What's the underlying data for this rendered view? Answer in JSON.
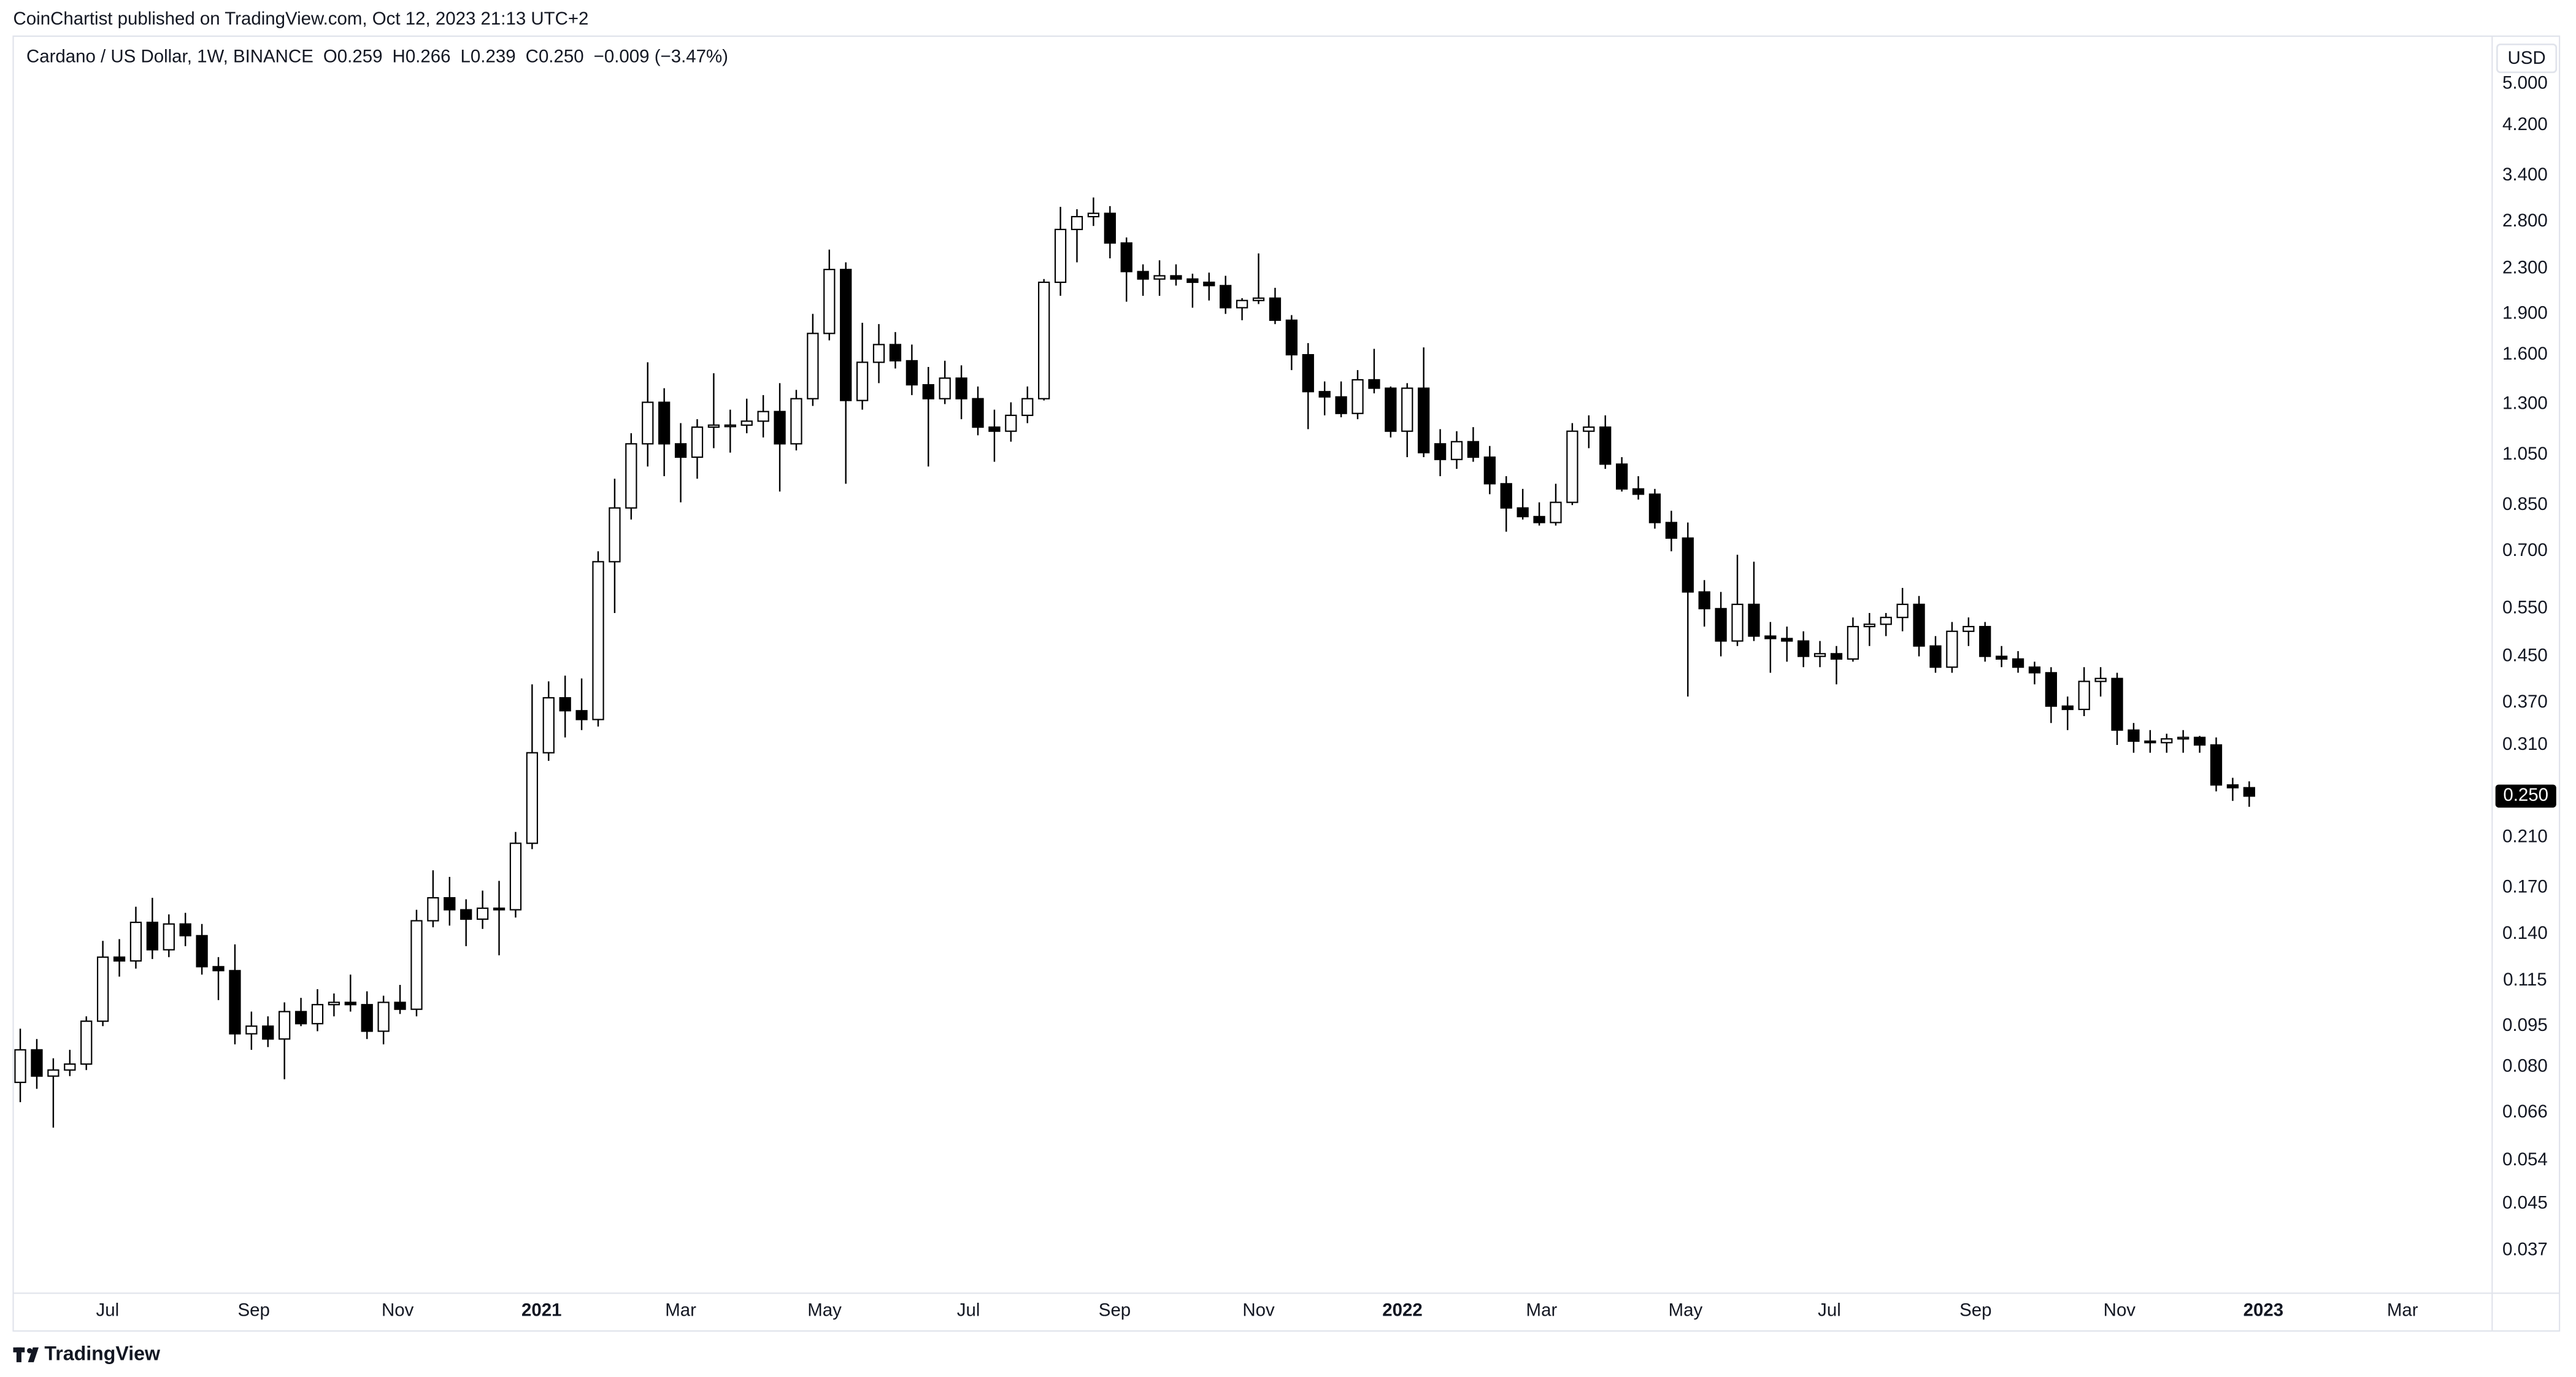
{
  "published": "CoinChartist published on TradingView.com, Oct 12, 2023 21:13 UTC+2",
  "brand": "TradingView",
  "chart_data": {
    "type": "candlestick",
    "title": "Cardano / US Dollar, 1W, BINANCE",
    "ohlc_labels": [
      "O0.259",
      "H0.266",
      "L0.239",
      "C0.250"
    ],
    "change_label": "−0.009 (−3.47%)",
    "currency": "USD",
    "log_scale": true,
    "grid": false,
    "up_color": "#ffffff",
    "down_color": "#000000",
    "border_color": "#000000",
    "last_price": {
      "value": 0.25,
      "label": "0.250"
    },
    "xlim": [
      "2020-05-22",
      "2023-04-08"
    ],
    "xticks": [
      {
        "value": "2020-07-01",
        "label": "Jul"
      },
      {
        "value": "2020-09-01",
        "label": "Sep"
      },
      {
        "value": "2020-11-01",
        "label": "Nov"
      },
      {
        "value": "2021-01-01",
        "label": "2021"
      },
      {
        "value": "2021-03-01",
        "label": "Mar"
      },
      {
        "value": "2021-05-01",
        "label": "May"
      },
      {
        "value": "2021-07-01",
        "label": "Jul"
      },
      {
        "value": "2021-09-01",
        "label": "Sep"
      },
      {
        "value": "2021-11-01",
        "label": "Nov"
      },
      {
        "value": "2022-01-01",
        "label": "2022"
      },
      {
        "value": "2022-03-01",
        "label": "Mar"
      },
      {
        "value": "2022-05-01",
        "label": "May"
      },
      {
        "value": "2022-07-01",
        "label": "Jul"
      },
      {
        "value": "2022-09-01",
        "label": "Sep"
      },
      {
        "value": "2022-11-01",
        "label": "Nov"
      },
      {
        "value": "2023-01-01",
        "label": "2023"
      },
      {
        "value": "2023-03-01",
        "label": "Mar"
      }
    ],
    "ylim": [
      0.0309,
      6.11
    ],
    "yticks": [
      {
        "value": 5,
        "label": "5.000"
      },
      {
        "value": 4.2,
        "label": "4.200"
      },
      {
        "value": 3.4,
        "label": "3.400"
      },
      {
        "value": 2.8,
        "label": "2.800"
      },
      {
        "value": 2.3,
        "label": "2.300"
      },
      {
        "value": 1.9,
        "label": "1.900"
      },
      {
        "value": 1.6,
        "label": "1.600"
      },
      {
        "value": 1.3,
        "label": "1.300"
      },
      {
        "value": 1.05,
        "label": "1.050"
      },
      {
        "value": 0.85,
        "label": "0.850"
      },
      {
        "value": 0.7,
        "label": "0.700"
      },
      {
        "value": 0.55,
        "label": "0.550"
      },
      {
        "value": 0.45,
        "label": "0.450"
      },
      {
        "value": 0.37,
        "label": "0.370"
      },
      {
        "value": 0.31,
        "label": "0.310"
      },
      {
        "value": 0.25,
        "label": "0.250"
      },
      {
        "value": 0.21,
        "label": "0.210"
      },
      {
        "value": 0.17,
        "label": "0.170"
      },
      {
        "value": 0.14,
        "label": "0.140"
      },
      {
        "value": 0.115,
        "label": "0.115"
      },
      {
        "value": 0.095,
        "label": "0.095"
      },
      {
        "value": 0.08,
        "label": "0.080"
      },
      {
        "value": 0.066,
        "label": "0.066"
      },
      {
        "value": 0.054,
        "label": "0.054"
      },
      {
        "value": 0.045,
        "label": "0.045"
      },
      {
        "value": 0.037,
        "label": "0.037"
      }
    ],
    "x": [
      "2020-05-25",
      "2020-06-01",
      "2020-06-08",
      "2020-06-15",
      "2020-06-22",
      "2020-06-29",
      "2020-07-06",
      "2020-07-13",
      "2020-07-20",
      "2020-07-27",
      "2020-08-03",
      "2020-08-10",
      "2020-08-17",
      "2020-08-24",
      "2020-08-31",
      "2020-09-07",
      "2020-09-14",
      "2020-09-21",
      "2020-09-28",
      "2020-10-05",
      "2020-10-12",
      "2020-10-19",
      "2020-10-26",
      "2020-11-02",
      "2020-11-09",
      "2020-11-16",
      "2020-11-23",
      "2020-11-30",
      "2020-12-07",
      "2020-12-14",
      "2020-12-21",
      "2020-12-28",
      "2021-01-04",
      "2021-01-11",
      "2021-01-18",
      "2021-01-25",
      "2021-02-01",
      "2021-02-08",
      "2021-02-15",
      "2021-02-22",
      "2021-03-01",
      "2021-03-08",
      "2021-03-15",
      "2021-03-22",
      "2021-03-29",
      "2021-04-05",
      "2021-04-12",
      "2021-04-19",
      "2021-04-26",
      "2021-05-03",
      "2021-05-10",
      "2021-05-17",
      "2021-05-24",
      "2021-05-31",
      "2021-06-07",
      "2021-06-14",
      "2021-06-21",
      "2021-06-28",
      "2021-07-05",
      "2021-07-12",
      "2021-07-19",
      "2021-07-26",
      "2021-08-02",
      "2021-08-09",
      "2021-08-16",
      "2021-08-23",
      "2021-08-30",
      "2021-09-06",
      "2021-09-13",
      "2021-09-20",
      "2021-09-27",
      "2021-10-04",
      "2021-10-11",
      "2021-10-18",
      "2021-10-25",
      "2021-11-01",
      "2021-11-08",
      "2021-11-15",
      "2021-11-22",
      "2021-11-29",
      "2021-12-06",
      "2021-12-13",
      "2021-12-20",
      "2021-12-27",
      "2022-01-03",
      "2022-01-10",
      "2022-01-17",
      "2022-01-24",
      "2022-01-31",
      "2022-02-07",
      "2022-02-14",
      "2022-02-21",
      "2022-02-28",
      "2022-03-07",
      "2022-03-14",
      "2022-03-21",
      "2022-03-28",
      "2022-04-04",
      "2022-04-11",
      "2022-04-18",
      "2022-04-25",
      "2022-05-02",
      "2022-05-09",
      "2022-05-16",
      "2022-05-23",
      "2022-05-30",
      "2022-06-06",
      "2022-06-13",
      "2022-06-20",
      "2022-06-27",
      "2022-07-04",
      "2022-07-11",
      "2022-07-18",
      "2022-07-25",
      "2022-08-01",
      "2022-08-08",
      "2022-08-15",
      "2022-08-22",
      "2022-08-29",
      "2022-09-05",
      "2022-09-12",
      "2022-09-19",
      "2022-09-26",
      "2022-10-03",
      "2022-10-10",
      "2022-10-17",
      "2022-10-24",
      "2022-10-31",
      "2022-11-07",
      "2022-11-14",
      "2022-11-21",
      "2022-11-28",
      "2022-12-05",
      "2022-12-12",
      "2022-12-19",
      "2022-12-26"
    ],
    "open": [
      0.075,
      0.086,
      0.077,
      0.079,
      0.081,
      0.097,
      0.127,
      0.125,
      0.147,
      0.131,
      0.146,
      0.139,
      0.122,
      0.12,
      0.092,
      0.095,
      0.09,
      0.101,
      0.096,
      0.104,
      0.105,
      0.104,
      0.093,
      0.105,
      0.102,
      0.148,
      0.163,
      0.155,
      0.149,
      0.156,
      0.155,
      0.205,
      0.3,
      0.378,
      0.358,
      0.345,
      0.67,
      0.84,
      1.1,
      1.31,
      1.1,
      1.04,
      1.18,
      1.19,
      1.19,
      1.21,
      1.26,
      1.1,
      1.33,
      1.75,
      2.29,
      1.32,
      1.55,
      1.67,
      1.56,
      1.41,
      1.33,
      1.45,
      1.33,
      1.18,
      1.16,
      1.24,
      1.33,
      2.17,
      2.71,
      2.86,
      2.9,
      2.56,
      2.27,
      2.2,
      2.23,
      2.2,
      2.17,
      2.14,
      1.95,
      2.01,
      2.03,
      1.85,
      1.6,
      1.37,
      1.34,
      1.25,
      1.44,
      1.39,
      1.16,
      1.39,
      1.1,
      1.03,
      1.11,
      1.04,
      0.93,
      0.84,
      0.81,
      0.79,
      0.86,
      1.16,
      1.18,
      1.01,
      0.91,
      0.89,
      0.79,
      0.74,
      0.59,
      0.55,
      0.48,
      0.56,
      0.49,
      0.485,
      0.48,
      0.45,
      0.455,
      0.445,
      0.51,
      0.515,
      0.53,
      0.56,
      0.47,
      0.43,
      0.5,
      0.51,
      0.45,
      0.445,
      0.43,
      0.42,
      0.365,
      0.36,
      0.405,
      0.41,
      0.33,
      0.315,
      0.313,
      0.318,
      0.32,
      0.31,
      0.262,
      0.259
    ],
    "high": [
      0.094,
      0.09,
      0.083,
      0.086,
      0.099,
      0.136,
      0.137,
      0.157,
      0.163,
      0.152,
      0.153,
      0.146,
      0.127,
      0.134,
      0.101,
      0.099,
      0.105,
      0.107,
      0.111,
      0.109,
      0.118,
      0.11,
      0.108,
      0.113,
      0.155,
      0.183,
      0.178,
      0.162,
      0.168,
      0.175,
      0.215,
      0.4,
      0.405,
      0.415,
      0.41,
      0.7,
      0.95,
      1.15,
      1.55,
      1.39,
      1.2,
      1.22,
      1.48,
      1.27,
      1.33,
      1.35,
      1.42,
      1.38,
      1.9,
      2.49,
      2.36,
      1.83,
      1.82,
      1.76,
      1.67,
      1.52,
      1.56,
      1.53,
      1.4,
      1.27,
      1.31,
      1.4,
      2.2,
      2.98,
      2.95,
      3.1,
      2.99,
      2.62,
      2.34,
      2.38,
      2.34,
      2.25,
      2.26,
      2.23,
      2.03,
      2.45,
      2.12,
      1.89,
      1.68,
      1.43,
      1.43,
      1.5,
      1.64,
      1.4,
      1.42,
      1.65,
      1.17,
      1.16,
      1.18,
      1.09,
      0.96,
      0.91,
      0.86,
      0.93,
      1.2,
      1.24,
      1.24,
      1.04,
      0.96,
      0.91,
      0.83,
      0.79,
      0.62,
      0.59,
      0.69,
      0.67,
      0.52,
      0.51,
      0.5,
      0.48,
      0.47,
      0.53,
      0.54,
      0.54,
      0.6,
      0.58,
      0.49,
      0.52,
      0.53,
      0.52,
      0.47,
      0.46,
      0.44,
      0.43,
      0.38,
      0.43,
      0.43,
      0.42,
      0.34,
      0.33,
      0.325,
      0.33,
      0.322,
      0.32,
      0.27,
      0.266
    ],
    "low": [
      0.069,
      0.073,
      0.062,
      0.077,
      0.079,
      0.095,
      0.117,
      0.121,
      0.126,
      0.127,
      0.133,
      0.118,
      0.106,
      0.088,
      0.086,
      0.087,
      0.076,
      0.095,
      0.093,
      0.099,
      0.101,
      0.09,
      0.088,
      0.1,
      0.099,
      0.144,
      0.145,
      0.133,
      0.143,
      0.128,
      0.15,
      0.2,
      0.29,
      0.32,
      0.33,
      0.335,
      0.54,
      0.8,
      1.0,
      0.96,
      0.86,
      0.95,
      1.08,
      1.06,
      1.15,
      1.13,
      0.9,
      1.07,
      1.29,
      1.7,
      0.93,
      1.27,
      1.42,
      1.51,
      1.35,
      1.0,
      1.3,
      1.22,
      1.14,
      1.02,
      1.11,
      1.2,
      1.32,
      2.05,
      2.36,
      2.75,
      2.4,
      2.0,
      2.05,
      2.05,
      2.14,
      1.95,
      2.01,
      1.9,
      1.85,
      1.98,
      1.82,
      1.5,
      1.17,
      1.24,
      1.23,
      1.22,
      1.36,
      1.13,
      1.04,
      1.04,
      0.96,
      0.99,
      1.02,
      0.89,
      0.76,
      0.8,
      0.78,
      0.78,
      0.85,
      1.08,
      0.99,
      0.9,
      0.87,
      0.77,
      0.7,
      0.38,
      0.51,
      0.45,
      0.47,
      0.48,
      0.42,
      0.44,
      0.43,
      0.43,
      0.4,
      0.44,
      0.47,
      0.49,
      0.5,
      0.45,
      0.42,
      0.42,
      0.47,
      0.44,
      0.43,
      0.42,
      0.4,
      0.34,
      0.33,
      0.35,
      0.38,
      0.31,
      0.3,
      0.3,
      0.3,
      0.3,
      0.3,
      0.255,
      0.245,
      0.239
    ],
    "close": [
      0.086,
      0.077,
      0.079,
      0.081,
      0.097,
      0.127,
      0.125,
      0.147,
      0.131,
      0.146,
      0.139,
      0.122,
      0.12,
      0.092,
      0.095,
      0.09,
      0.101,
      0.096,
      0.104,
      0.105,
      0.104,
      0.093,
      0.105,
      0.102,
      0.148,
      0.163,
      0.155,
      0.149,
      0.156,
      0.155,
      0.205,
      0.3,
      0.378,
      0.358,
      0.345,
      0.67,
      0.84,
      1.1,
      1.31,
      1.1,
      1.04,
      1.18,
      1.19,
      1.19,
      1.21,
      1.26,
      1.1,
      1.33,
      1.75,
      2.29,
      1.32,
      1.55,
      1.67,
      1.56,
      1.41,
      1.33,
      1.45,
      1.33,
      1.18,
      1.16,
      1.24,
      1.33,
      2.17,
      2.71,
      2.86,
      2.9,
      2.56,
      2.27,
      2.2,
      2.23,
      2.2,
      2.17,
      2.14,
      1.95,
      2.01,
      2.03,
      1.85,
      1.6,
      1.37,
      1.34,
      1.25,
      1.44,
      1.39,
      1.16,
      1.39,
      1.06,
      1.03,
      1.11,
      1.04,
      0.93,
      0.84,
      0.81,
      0.79,
      0.86,
      1.16,
      1.18,
      1.01,
      0.91,
      0.89,
      0.79,
      0.74,
      0.59,
      0.55,
      0.48,
      0.56,
      0.49,
      0.485,
      0.48,
      0.45,
      0.455,
      0.445,
      0.51,
      0.515,
      0.53,
      0.56,
      0.47,
      0.43,
      0.5,
      0.51,
      0.45,
      0.445,
      0.43,
      0.42,
      0.365,
      0.36,
      0.405,
      0.41,
      0.33,
      0.315,
      0.313,
      0.318,
      0.32,
      0.31,
      0.262,
      0.259,
      0.25
    ]
  }
}
